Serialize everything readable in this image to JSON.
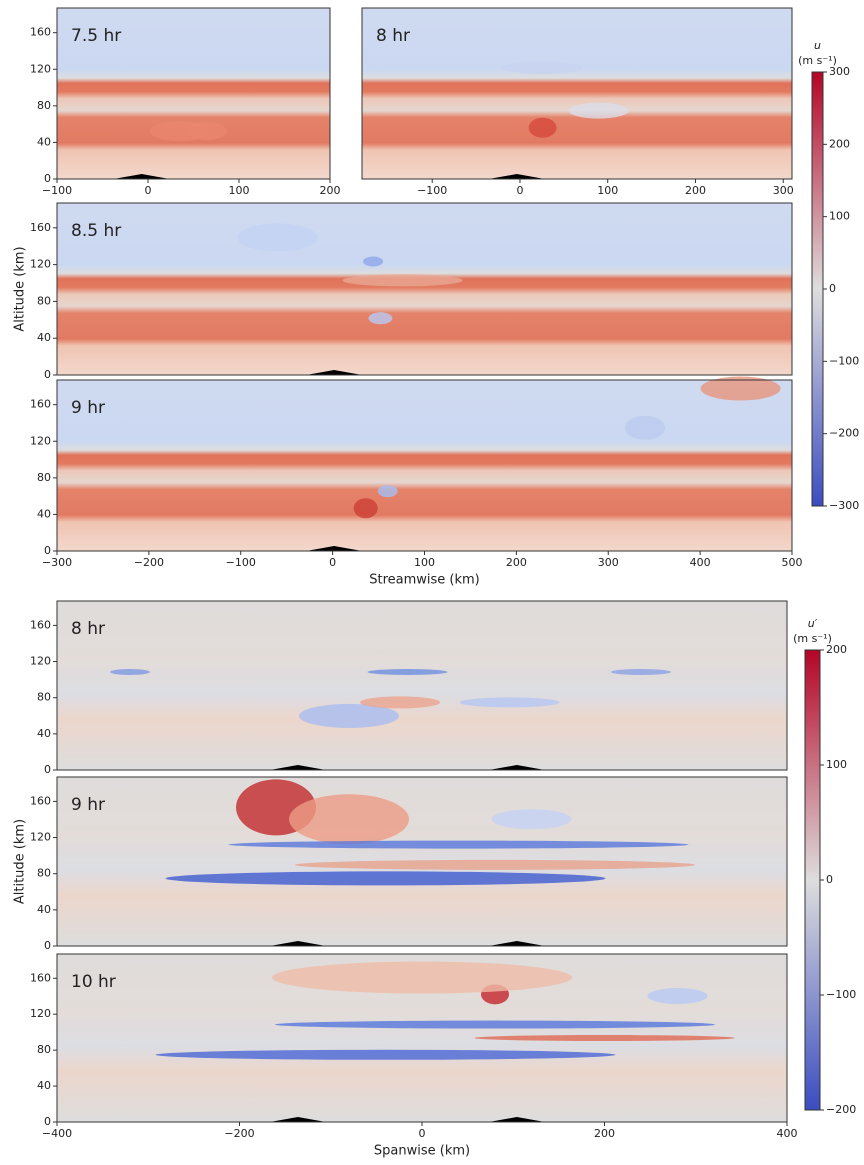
{
  "chart_data": [
    {
      "type": "heatmap",
      "title": "7.5 hr",
      "xlim": [
        -100,
        200
      ],
      "xticks": [
        {
          "value": -100,
          "label": "−100"
        },
        0,
        100,
        200
      ],
      "ylim": [
        0,
        187
      ],
      "yticks": [
        0,
        40,
        80,
        120,
        160
      ]
    },
    {
      "type": "heatmap",
      "title": "8 hr",
      "xlim": [
        -180,
        310
      ],
      "xticks": [
        {
          "value": -100,
          "label": "−100"
        },
        0,
        100,
        200,
        300
      ]
    },
    {
      "type": "heatmap",
      "title": "8.5 hr",
      "ylim": [
        0,
        187
      ],
      "yticks": [
        0,
        40,
        80,
        120,
        160
      ],
      "ylabel": "Altitude (km)"
    },
    {
      "type": "heatmap",
      "title": "9 hr",
      "xlim": [
        -300,
        500
      ],
      "xticks": [
        {
          "value": -300,
          "label": "−300"
        },
        {
          "value": -200,
          "label": "−200"
        },
        {
          "value": -100,
          "label": "−100"
        },
        0,
        100,
        200,
        300,
        400,
        500
      ],
      "ylim": [
        0,
        187
      ],
      "yticks": [
        0,
        40,
        80,
        120,
        160
      ],
      "xlabel": "Streamwise (km)"
    },
    {
      "type": "heatmap",
      "title": "8 hr",
      "ylim": [
        0,
        187
      ],
      "yticks": [
        0,
        40,
        80,
        120,
        160
      ]
    },
    {
      "type": "heatmap",
      "title": "9 hr",
      "ylim": [
        0,
        187
      ],
      "yticks": [
        0,
        40,
        80,
        120,
        160
      ],
      "ylabel": "Altitude (km)"
    },
    {
      "type": "heatmap",
      "title": "10 hr",
      "xlim": [
        -400,
        400
      ],
      "xticks": [
        {
          "value": -400,
          "label": "−400"
        },
        {
          "value": -200,
          "label": "−200"
        },
        0,
        200,
        400
      ],
      "ylim": [
        0,
        187
      ],
      "yticks": [
        0,
        40,
        80,
        120,
        160
      ],
      "xlabel": "Spanwise (km)"
    }
  ],
  "colorbars": [
    {
      "label": "u",
      "unit": "(m s⁻¹)",
      "lim": [
        -300,
        300
      ],
      "ticks": [
        {
          "value": -300,
          "label": "−300"
        },
        {
          "value": -200,
          "label": "−200"
        },
        {
          "value": -100,
          "label": "−100"
        },
        0,
        100,
        200,
        300
      ],
      "colors": [
        "#3b4cc0",
        "#dddddd",
        "#b40426"
      ]
    },
    {
      "label": "u′",
      "unit": "(m s⁻¹)",
      "lim": [
        -200,
        200
      ],
      "ticks": [
        {
          "value": -200,
          "label": "−200"
        },
        {
          "value": -100,
          "label": "−100"
        },
        0,
        100,
        200
      ],
      "colors": [
        "#3b4cc0",
        "#dddddd",
        "#b40426"
      ]
    }
  ]
}
